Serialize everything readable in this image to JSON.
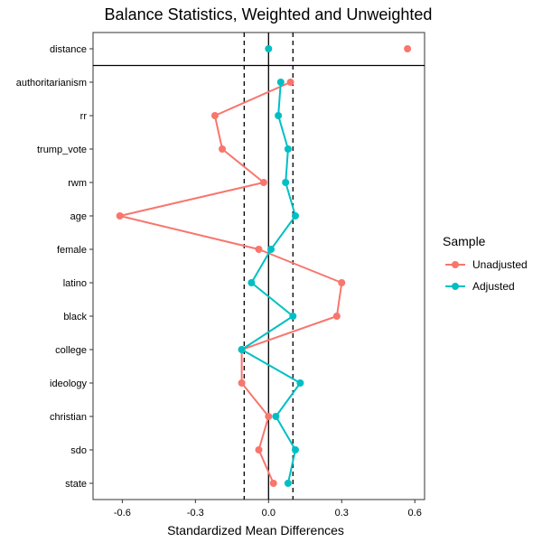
{
  "chart_data": {
    "type": "line",
    "title": "Balance Statistics, Weighted and Unweighted",
    "xlabel": "Standardized Mean Differences",
    "ylabel": "",
    "xlim": [
      -0.72,
      0.64
    ],
    "x_ticks": [
      -0.6,
      -0.3,
      0.0,
      0.3,
      0.6
    ],
    "x_tick_labels": [
      "-0.6",
      "-0.3",
      "0.0",
      "0.3",
      "0.6"
    ],
    "reference_lines": [
      {
        "value": 0.0,
        "style": "solid"
      },
      {
        "value": -0.1,
        "style": "dashed"
      },
      {
        "value": 0.1,
        "style": "dashed"
      }
    ],
    "separator_after": "distance",
    "grid": false,
    "legend_position": "right",
    "legend_title": "Sample",
    "categories": [
      "distance",
      "authoritarianism",
      "rr",
      "trump_vote",
      "rwm",
      "age",
      "female",
      "latino",
      "black",
      "college",
      "ideology",
      "christian",
      "sdo",
      "state"
    ],
    "series": [
      {
        "name": "Unadjusted",
        "color": "#F8766D",
        "values": [
          0.57,
          0.09,
          -0.22,
          -0.19,
          -0.02,
          -0.61,
          -0.04,
          0.3,
          0.28,
          -0.11,
          -0.11,
          0.0,
          -0.04,
          0.02
        ]
      },
      {
        "name": "Adjusted",
        "color": "#00BFC4",
        "values": [
          0.0,
          0.05,
          0.04,
          0.08,
          0.07,
          0.11,
          0.01,
          -0.07,
          0.1,
          -0.11,
          0.13,
          0.03,
          0.11,
          0.08
        ]
      }
    ]
  }
}
